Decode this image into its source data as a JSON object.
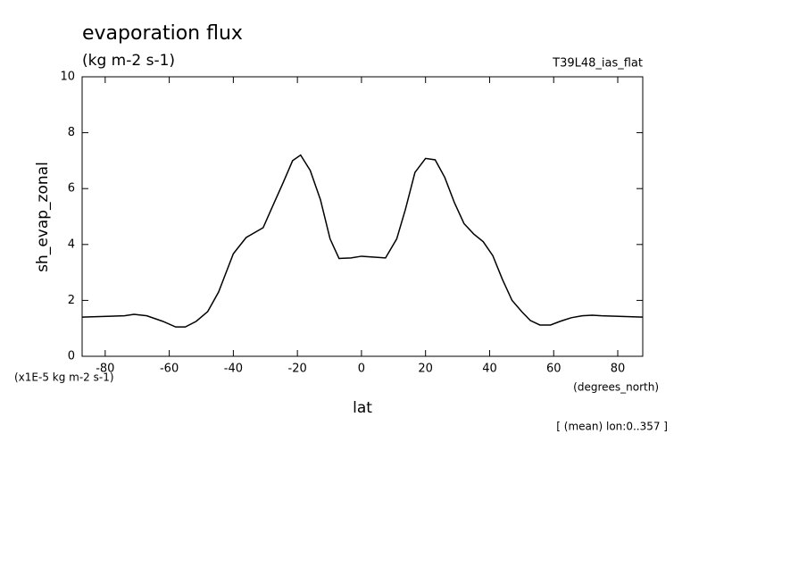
{
  "chart_data": {
    "type": "line",
    "title": "evaporation flux",
    "subtitle": "(kg m-2 s-1)",
    "annotation_right": "T39L48_ias_flat",
    "y_label": "sh_evap_zonal",
    "y_units": "(x1E-5 kg m-2 s-1)",
    "x_label": "lat",
    "x_units": "(degrees_north)",
    "footnote": "[ (mean) lon:0..357 ]",
    "x": [
      -87.2,
      -74,
      -71,
      -67,
      -62,
      -58,
      -55,
      -51.6,
      -48,
      -44.6,
      -40,
      -36,
      -30.7,
      -28,
      -24.5,
      -21.5,
      -19,
      -16,
      -12.8,
      -9.8,
      -7,
      -3.3,
      0,
      3.6,
      7.5,
      11,
      13.7,
      16.7,
      20,
      23,
      26,
      29,
      32,
      35,
      38,
      41,
      44,
      47,
      50,
      52.7,
      55.7,
      59,
      62,
      65.5,
      68.9,
      72,
      75,
      87.8
    ],
    "series": [
      {
        "name": "sh_evap_zonal",
        "color": "#000000",
        "values": [
          1.4,
          1.45,
          1.5,
          1.45,
          1.25,
          1.05,
          1.05,
          1.25,
          1.6,
          2.3,
          3.67,
          4.25,
          4.6,
          5.3,
          6.2,
          7.0,
          7.2,
          6.65,
          5.6,
          4.2,
          3.5,
          3.52,
          3.58,
          3.55,
          3.52,
          4.2,
          5.25,
          6.58,
          7.08,
          7.03,
          6.4,
          5.5,
          4.75,
          4.38,
          4.1,
          3.6,
          2.75,
          2.0,
          1.6,
          1.28,
          1.12,
          1.12,
          1.25,
          1.38,
          1.45,
          1.47,
          1.45,
          1.4
        ]
      }
    ],
    "xlim": [
      -87.2,
      87.8
    ],
    "xticks": [
      -80,
      -60,
      -40,
      -20,
      0,
      20,
      40,
      60,
      80
    ],
    "ylim": [
      0,
      10
    ],
    "yticks": [
      0,
      2,
      4,
      6,
      8,
      10
    ],
    "grid": false
  }
}
